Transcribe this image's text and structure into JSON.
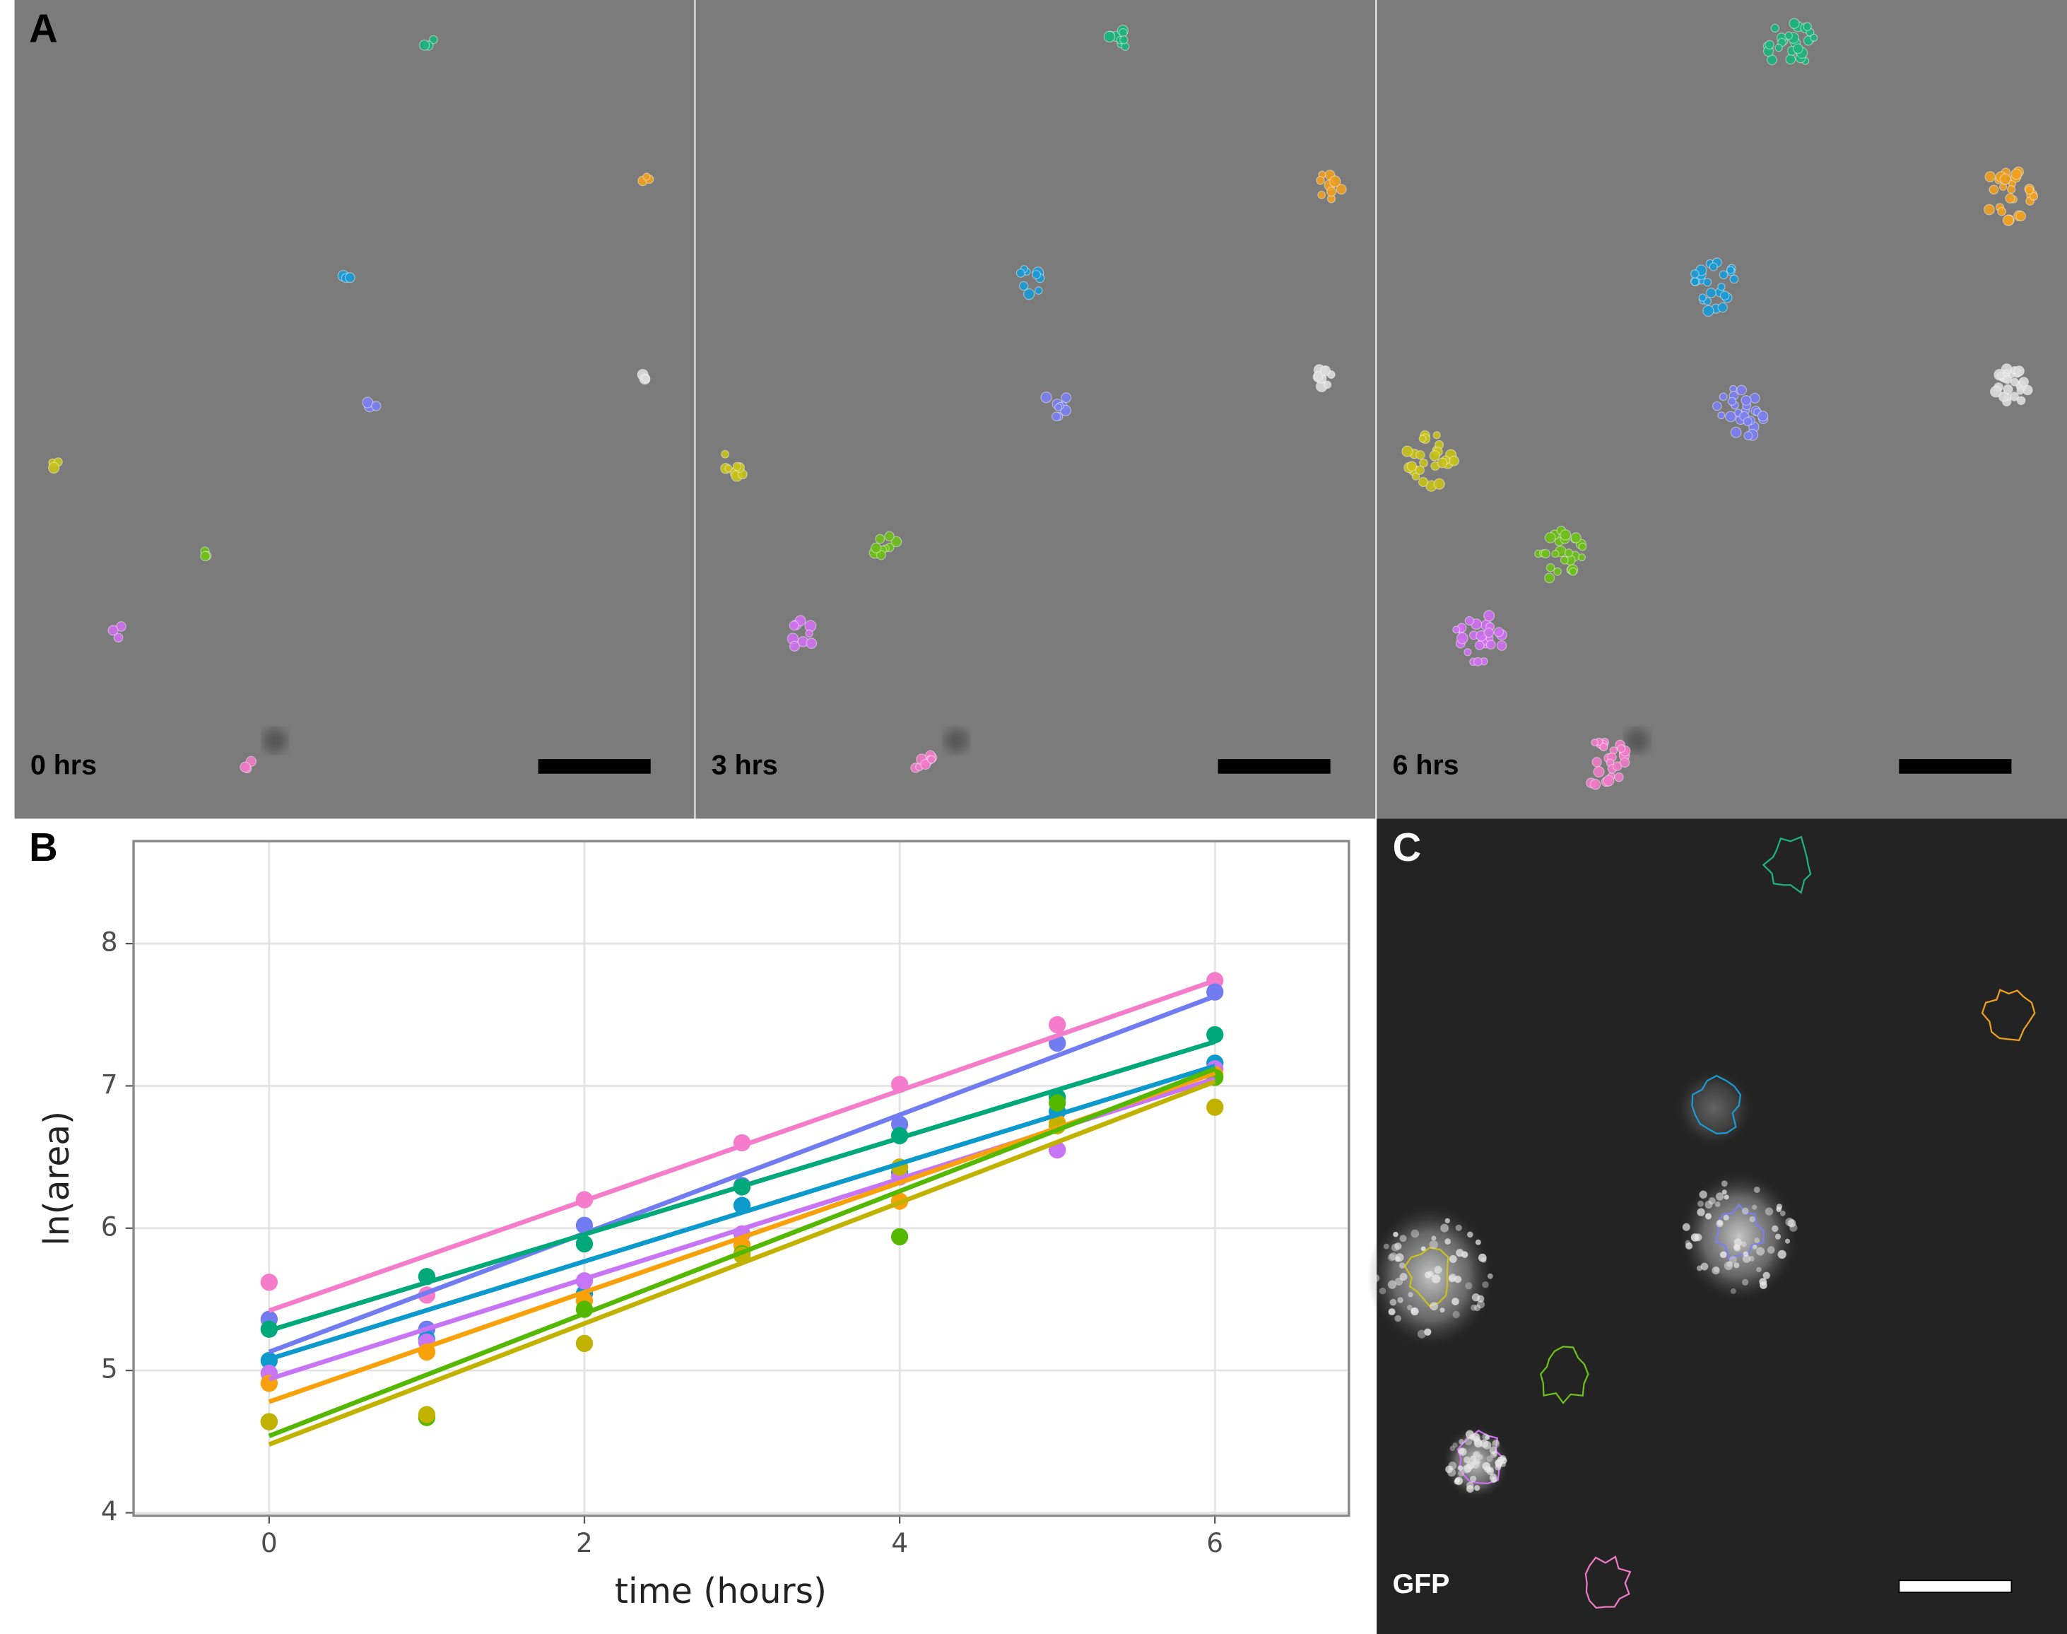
{
  "panel_labels": [
    "A",
    "B",
    "C"
  ],
  "time_labels": [
    "0 hrs",
    "3 hrs",
    "6 hrs"
  ],
  "channel_label": "GFP",
  "chart_data": {
    "type": "scatter",
    "x_label": "time (hours)",
    "y_label": "ln(area)",
    "x": [
      0,
      1,
      2,
      3,
      4,
      5,
      6
    ],
    "xlim": [
      -0.86,
      6.85
    ],
    "xticks": [
      0,
      2,
      4,
      6
    ],
    "ylim": [
      3.98,
      8.72
    ],
    "yticks": [
      4,
      5,
      6,
      7,
      8
    ],
    "grid": true,
    "series": [
      {
        "color": "#f57ccb",
        "values": [
          5.62,
          5.53,
          6.2,
          6.6,
          7.01,
          7.43,
          7.74
        ],
        "fit": [
          5.42,
          7.74
        ]
      },
      {
        "color": "#717cf0",
        "values": [
          5.36,
          5.29,
          6.02,
          6.3,
          6.73,
          7.3,
          7.66
        ],
        "fit": [
          5.13,
          7.63
        ]
      },
      {
        "color": "#00a87a",
        "values": [
          5.29,
          5.66,
          5.89,
          6.29,
          6.65,
          6.92,
          7.36
        ],
        "fit": [
          5.28,
          7.31
        ]
      },
      {
        "color": "#0c99cc",
        "values": [
          5.07,
          5.22,
          5.54,
          6.16,
          6.39,
          6.82,
          7.16
        ],
        "fit": [
          5.08,
          7.14
        ]
      },
      {
        "color": "#c875f5",
        "values": [
          4.98,
          5.2,
          5.63,
          5.96,
          6.36,
          6.55,
          7.12
        ],
        "fit": [
          4.94,
          7.05
        ]
      },
      {
        "color": "#f8a10a",
        "values": [
          4.91,
          5.13,
          5.49,
          5.88,
          6.19,
          6.74,
          7.08
        ],
        "fit": [
          4.78,
          7.09
        ]
      },
      {
        "color": "#55b800",
        "values": [
          4.64,
          4.67,
          5.43,
          5.82,
          5.94,
          6.88,
          7.06
        ],
        "fit": [
          4.54,
          7.12
        ]
      },
      {
        "color": "#c2b200",
        "values": [
          4.64,
          4.69,
          5.19,
          5.81,
          6.43,
          6.72,
          6.85
        ],
        "fit": [
          4.48,
          7.03
        ]
      }
    ]
  }
}
